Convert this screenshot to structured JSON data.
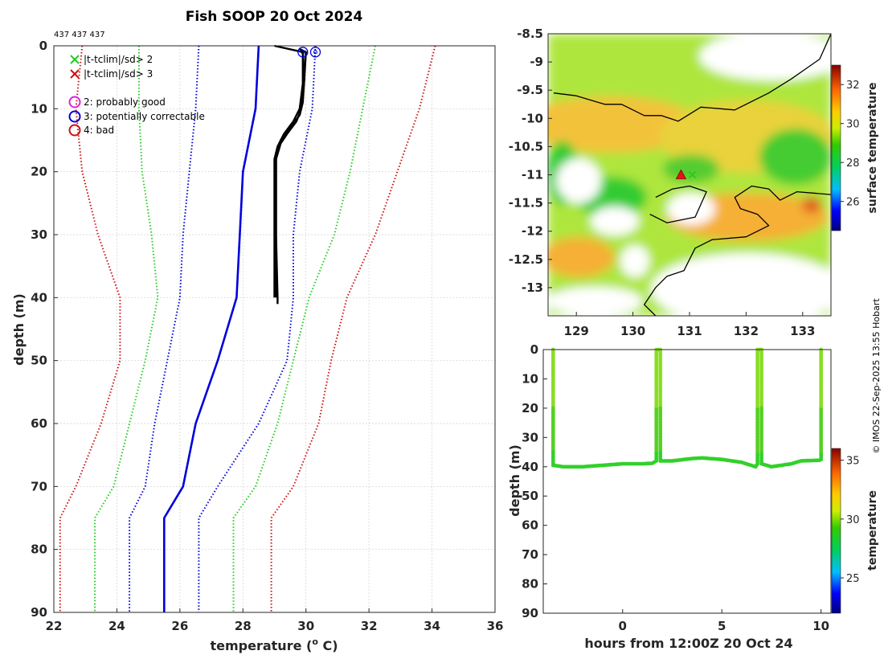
{
  "title": "Fish SOOP 20 Oct 2024",
  "profile_ids": "437 437 437",
  "credit": "© IMOS 22-Sep-2025 13:55 Hobart",
  "colors": {
    "green": "#22cc22",
    "red": "#cc1111",
    "blue": "#0000dd",
    "magenta": "#dd22dd",
    "black": "#000000"
  },
  "chart_data": [
    {
      "type": "line",
      "name": "temperature-profile",
      "xlabel": "temperature (° C)",
      "xlabel_parts": [
        "temperature (",
        "o",
        " C)"
      ],
      "ylabel": "depth (m)",
      "xlim": [
        22,
        36
      ],
      "ylim": [
        90,
        0
      ],
      "x_ticks": [
        22,
        24,
        26,
        28,
        30,
        32,
        34,
        36
      ],
      "y_ticks": [
        0,
        10,
        20,
        30,
        40,
        50,
        60,
        70,
        80,
        90
      ],
      "grid": true,
      "legend": {
        "placement": "top-left",
        "items": [
          {
            "symbol": "x",
            "color": "#22cc22",
            "label": "|t-tclim|/sd> 2"
          },
          {
            "symbol": "x",
            "color": "#cc1111",
            "label": "|t-tclim|/sd> 3"
          },
          {
            "symbol": "o",
            "color": "#dd22dd",
            "label": "2: probably good"
          },
          {
            "symbol": "o",
            "color": "#0000dd",
            "label": "3: potentially correctable"
          },
          {
            "symbol": "o",
            "color": "#cc1111",
            "label": "4: bad"
          }
        ]
      },
      "series": [
        {
          "name": "clim-mean",
          "style": "solid",
          "color": "#0000dd",
          "points": [
            [
              28.5,
              0
            ],
            [
              28.4,
              10
            ],
            [
              28.0,
              20
            ],
            [
              27.9,
              30
            ],
            [
              27.8,
              40
            ],
            [
              27.2,
              50
            ],
            [
              26.5,
              60
            ],
            [
              26.1,
              70
            ],
            [
              25.5,
              75
            ],
            [
              25.5,
              90
            ]
          ]
        },
        {
          "name": "clim-minus-1sd",
          "style": "dotted",
          "color": "#0000dd",
          "points": [
            [
              26.6,
              0
            ],
            [
              26.5,
              10
            ],
            [
              26.3,
              20
            ],
            [
              26.1,
              30
            ],
            [
              26.0,
              40
            ],
            [
              25.6,
              50
            ],
            [
              25.2,
              60
            ],
            [
              24.9,
              70
            ],
            [
              24.4,
              75
            ],
            [
              24.4,
              90
            ]
          ]
        },
        {
          "name": "clim-plus-1sd",
          "style": "dotted",
          "color": "#0000dd",
          "points": [
            [
              30.3,
              0
            ],
            [
              30.2,
              10
            ],
            [
              29.8,
              20
            ],
            [
              29.6,
              30
            ],
            [
              29.6,
              40
            ],
            [
              29.4,
              50
            ],
            [
              28.5,
              60
            ],
            [
              27.2,
              70
            ],
            [
              26.6,
              75
            ],
            [
              26.6,
              90
            ]
          ]
        },
        {
          "name": "clim-minus-2sd",
          "style": "dotted",
          "color": "#22cc22",
          "points": [
            [
              24.7,
              0
            ],
            [
              24.7,
              10
            ],
            [
              24.8,
              20
            ],
            [
              25.1,
              30
            ],
            [
              25.3,
              40
            ],
            [
              24.9,
              50
            ],
            [
              24.4,
              60
            ],
            [
              23.9,
              70
            ],
            [
              23.3,
              75
            ],
            [
              23.3,
              90
            ]
          ]
        },
        {
          "name": "clim-plus-2sd",
          "style": "dotted",
          "color": "#22cc22",
          "points": [
            [
              32.2,
              0
            ],
            [
              31.8,
              10
            ],
            [
              31.4,
              20
            ],
            [
              30.9,
              30
            ],
            [
              30.1,
              40
            ],
            [
              29.6,
              50
            ],
            [
              29.1,
              60
            ],
            [
              28.4,
              70
            ],
            [
              27.7,
              75
            ],
            [
              27.7,
              90
            ]
          ]
        },
        {
          "name": "clim-minus-3sd",
          "style": "dotted",
          "color": "#cc1111",
          "points": [
            [
              22.9,
              0
            ],
            [
              22.7,
              10
            ],
            [
              22.9,
              20
            ],
            [
              23.4,
              30
            ],
            [
              24.1,
              40
            ],
            [
              24.1,
              50
            ],
            [
              23.5,
              60
            ],
            [
              22.7,
              70
            ],
            [
              22.2,
              75
            ],
            [
              22.2,
              90
            ]
          ]
        },
        {
          "name": "clim-plus-3sd",
          "style": "dotted",
          "color": "#cc1111",
          "points": [
            [
              34.1,
              0
            ],
            [
              33.6,
              10
            ],
            [
              32.9,
              20
            ],
            [
              32.2,
              30
            ],
            [
              31.3,
              40
            ],
            [
              30.8,
              50
            ],
            [
              30.4,
              60
            ],
            [
              29.6,
              70
            ],
            [
              28.9,
              75
            ],
            [
              28.9,
              90
            ]
          ]
        },
        {
          "name": "profile-1",
          "style": "solid",
          "color": "#000000",
          "points": [
            [
              29.8,
              0.5
            ],
            [
              30.0,
              1
            ],
            [
              29.95,
              5
            ],
            [
              29.9,
              8
            ],
            [
              29.85,
              10
            ],
            [
              29.7,
              12
            ],
            [
              29.4,
              14
            ],
            [
              29.2,
              15.5
            ],
            [
              29.05,
              18
            ],
            [
              29.05,
              30
            ],
            [
              29.1,
              40
            ],
            [
              29.1,
              41
            ]
          ]
        },
        {
          "name": "profile-2",
          "style": "solid",
          "color": "#000000",
          "points": [
            [
              29.9,
              1
            ],
            [
              29.95,
              5
            ],
            [
              29.9,
              9
            ],
            [
              29.8,
              11
            ],
            [
              29.5,
              13
            ],
            [
              29.2,
              15
            ],
            [
              29.05,
              17
            ],
            [
              29.05,
              30
            ],
            [
              29.05,
              40
            ]
          ]
        },
        {
          "name": "profile-3",
          "style": "solid",
          "color": "#000000",
          "points": [
            [
              29.9,
              1
            ],
            [
              29.9,
              6
            ],
            [
              29.8,
              10
            ],
            [
              29.6,
              12
            ],
            [
              29.3,
              14
            ],
            [
              29.1,
              16
            ],
            [
              29.0,
              18
            ],
            [
              29.0,
              30
            ],
            [
              29.0,
              40
            ]
          ]
        },
        {
          "name": "profile-lead",
          "style": "solid",
          "color": "#000000",
          "points": [
            [
              29.0,
              0
            ],
            [
              29.9,
              1
            ]
          ]
        }
      ],
      "flag_markers": [
        {
          "temp": 29.9,
          "depth": 1,
          "flag": 3,
          "color": "#0000dd"
        },
        {
          "temp": 30.3,
          "depth": 1,
          "flag": 3,
          "color": "#0000dd"
        }
      ]
    },
    {
      "type": "heatmap",
      "name": "surface-temperature-map",
      "xlim": [
        128.5,
        133.5
      ],
      "ylim": [
        -13.5,
        -8.5
      ],
      "x_ticks": [
        129,
        130,
        131,
        132,
        133
      ],
      "y_ticks": [
        -8.5,
        -9,
        -9.5,
        -10,
        -10.5,
        -11,
        -11.5,
        -12,
        -12.5,
        -13
      ],
      "x_tick_labels": [
        "129",
        "130",
        "131",
        "132",
        "133"
      ],
      "y_tick_labels": [
        "-8.5",
        "-9",
        "-9.5",
        "-10",
        "-10.5",
        "-11",
        "-11.5",
        "-12",
        "-12.5",
        "-13"
      ],
      "colorbar": {
        "label": "surface temperature",
        "range": [
          24.5,
          33
        ],
        "ticks": [
          26,
          28,
          30,
          32
        ],
        "tick_labels": [
          "26",
          "28",
          "30",
          "32"
        ]
      },
      "station_markers": [
        {
          "lon": 130.85,
          "lat": -11.0,
          "color": "#ee1111",
          "symbol": "triangle"
        },
        {
          "lon": 131.05,
          "lat": -11.0,
          "color": "#22cc22",
          "symbol": "x"
        }
      ],
      "coastline": [
        [
          [
            128.6,
            -9.55
          ],
          [
            129.0,
            -9.6
          ],
          [
            129.5,
            -9.75
          ],
          [
            129.8,
            -9.75
          ],
          [
            130.2,
            -9.95
          ],
          [
            130.5,
            -9.95
          ],
          [
            130.8,
            -10.05
          ],
          [
            131.2,
            -9.8
          ],
          [
            131.8,
            -9.85
          ],
          [
            132.4,
            -9.55
          ],
          [
            132.8,
            -9.3
          ],
          [
            133.3,
            -8.95
          ],
          [
            133.5,
            -8.5
          ]
        ],
        [
          [
            130.4,
            -11.4
          ],
          [
            130.7,
            -11.25
          ],
          [
            131.0,
            -11.2
          ],
          [
            131.3,
            -11.3
          ],
          [
            131.1,
            -11.75
          ],
          [
            130.6,
            -11.85
          ],
          [
            130.3,
            -11.7
          ]
        ],
        [
          [
            133.5,
            -11.35
          ],
          [
            132.9,
            -11.3
          ],
          [
            132.6,
            -11.45
          ],
          [
            132.4,
            -11.25
          ],
          [
            132.1,
            -11.2
          ],
          [
            131.8,
            -11.4
          ],
          [
            131.9,
            -11.6
          ],
          [
            132.2,
            -11.7
          ],
          [
            132.4,
            -11.9
          ],
          [
            132.0,
            -12.1
          ],
          [
            131.4,
            -12.15
          ],
          [
            131.1,
            -12.3
          ],
          [
            130.9,
            -12.7
          ],
          [
            130.6,
            -12.8
          ],
          [
            130.4,
            -13.0
          ],
          [
            130.2,
            -13.3
          ],
          [
            130.4,
            -13.5
          ]
        ]
      ]
    },
    {
      "type": "scatter",
      "name": "depth-time",
      "xlabel": "hours from 12:00Z 20 Oct 24",
      "ylabel": "depth (m)",
      "xlim": [
        -4,
        10.5
      ],
      "ylim": [
        90,
        0
      ],
      "x_ticks": [
        0,
        5,
        10
      ],
      "y_ticks": [
        0,
        10,
        20,
        30,
        40,
        50,
        60,
        70,
        80,
        90
      ],
      "colorbar": {
        "label": "temperature",
        "range": [
          22,
          36
        ],
        "ticks": [
          25,
          30,
          35
        ],
        "tick_labels": [
          "25",
          "30",
          "35"
        ]
      },
      "track": [
        [
          -3.5,
          0
        ],
        [
          -3.5,
          5
        ],
        [
          -3.5,
          10
        ],
        [
          -3.5,
          15
        ],
        [
          -3.5,
          20
        ],
        [
          -3.5,
          25
        ],
        [
          -3.5,
          30
        ],
        [
          -3.5,
          35
        ],
        [
          -3.5,
          39.5
        ],
        [
          -3,
          40
        ],
        [
          -2,
          40
        ],
        [
          -1,
          39.5
        ],
        [
          0,
          39
        ],
        [
          1,
          39
        ],
        [
          1.5,
          38.8
        ],
        [
          1.7,
          38
        ],
        [
          1.7,
          30
        ],
        [
          1.7,
          20
        ],
        [
          1.7,
          10
        ],
        [
          1.7,
          0
        ],
        [
          1.9,
          0
        ],
        [
          1.9,
          10
        ],
        [
          1.9,
          20
        ],
        [
          1.9,
          30
        ],
        [
          1.9,
          38
        ],
        [
          2.5,
          38
        ],
        [
          3.5,
          37.2
        ],
        [
          4,
          37
        ],
        [
          5,
          37.5
        ],
        [
          6,
          38.5
        ],
        [
          6.7,
          40
        ],
        [
          6.8,
          39
        ],
        [
          6.8,
          30
        ],
        [
          6.8,
          20
        ],
        [
          6.8,
          10
        ],
        [
          6.8,
          0
        ],
        [
          7.0,
          0
        ],
        [
          7.0,
          10
        ],
        [
          7.0,
          20
        ],
        [
          7.0,
          30
        ],
        [
          7.0,
          39
        ],
        [
          7.5,
          40
        ],
        [
          8.5,
          39
        ],
        [
          9,
          38
        ],
        [
          9.9,
          37.8
        ],
        [
          10,
          37.5
        ],
        [
          10,
          30
        ],
        [
          10,
          20
        ],
        [
          10,
          10
        ],
        [
          10,
          0
        ]
      ]
    }
  ]
}
